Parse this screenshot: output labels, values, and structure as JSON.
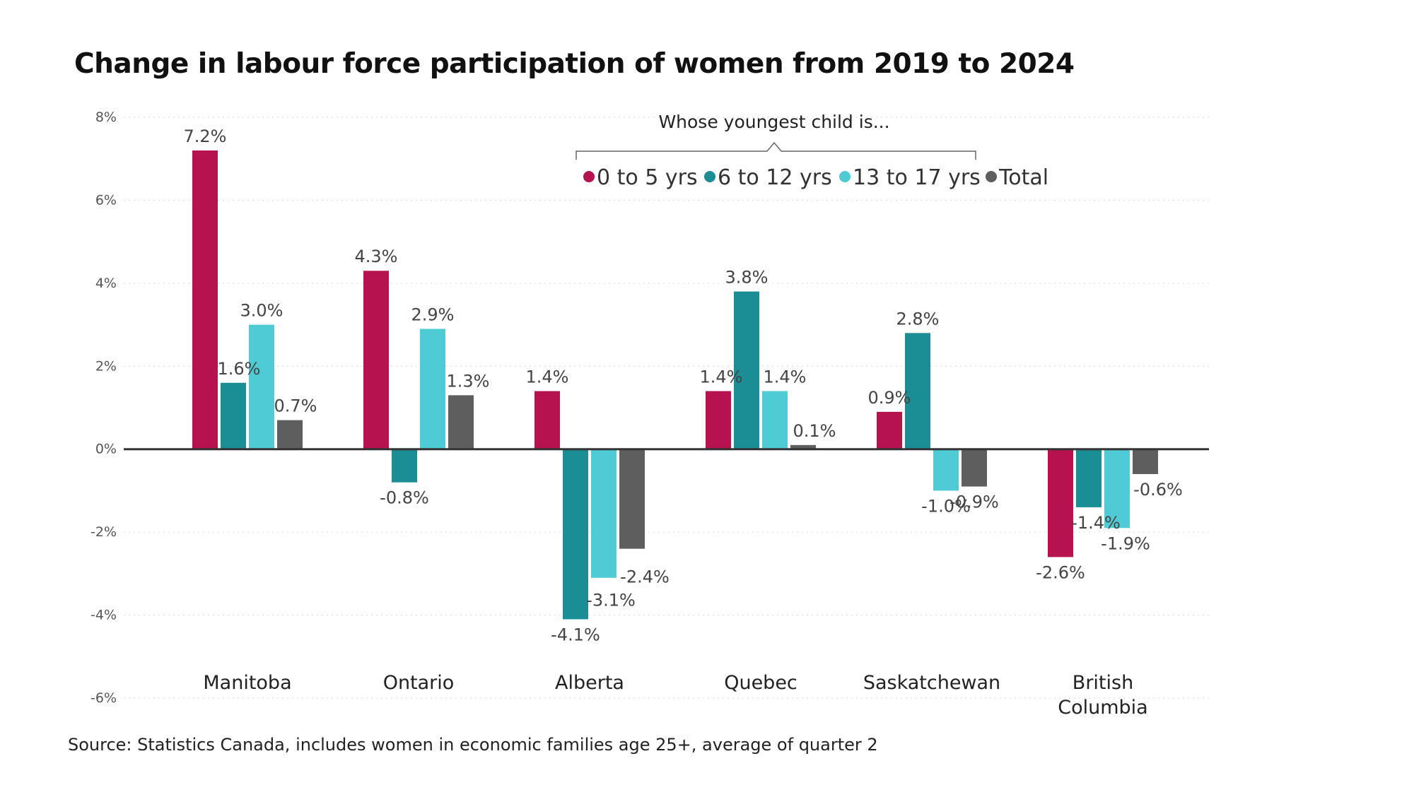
{
  "chart_data": {
    "type": "bar",
    "title": "Change in labour force participation of women from 2019 to 2024",
    "source": "Source: Statistics Canada, includes women in economic families age 25+, average of quarter 2",
    "legend_title": "Whose youngest child is...",
    "legend_position": "top-right",
    "categories": [
      [
        "Manitoba"
      ],
      [
        "Ontario"
      ],
      [
        "Alberta"
      ],
      [
        "Quebec"
      ],
      [
        "Saskatchewan"
      ],
      [
        "British",
        "Columbia"
      ]
    ],
    "series": [
      {
        "name": "0 to 5 yrs",
        "color": "#B5124F",
        "values": [
          7.2,
          4.3,
          1.4,
          1.4,
          0.9,
          -2.6
        ]
      },
      {
        "name": "6 to 12 yrs",
        "color": "#1A8D95",
        "values": [
          1.6,
          -0.8,
          -4.1,
          3.8,
          2.8,
          -1.4
        ]
      },
      {
        "name": "13 to 17 yrs",
        "color": "#4FCBD6",
        "values": [
          3.0,
          2.9,
          -3.1,
          1.4,
          -1.0,
          -1.9
        ]
      },
      {
        "name": "Total",
        "color": "#5E5E5E",
        "values": [
          0.7,
          1.3,
          -2.4,
          0.1,
          -0.9,
          -0.6
        ]
      }
    ],
    "ylim": [
      -6,
      8
    ],
    "yticks": [
      8,
      6,
      4,
      2,
      0,
      -2,
      -4,
      -6
    ],
    "ytick_suffix": "%",
    "grid": true,
    "xlabel": "",
    "ylabel": ""
  }
}
